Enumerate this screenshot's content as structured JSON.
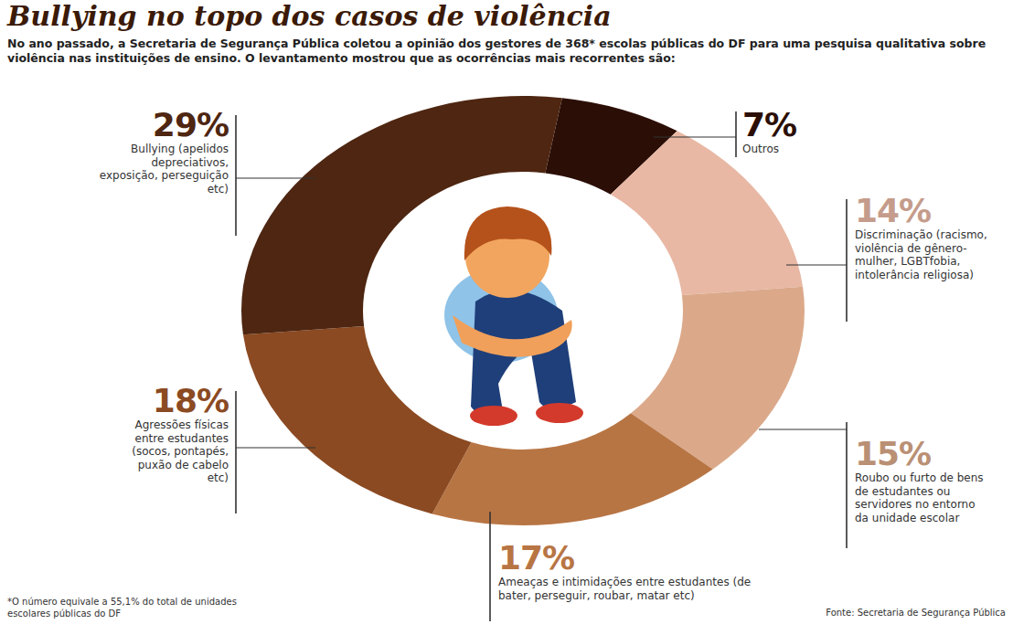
{
  "chart_data": {
    "type": "donut",
    "title": "Bullying no topo dos casos de violência",
    "subtitle": "No ano passado, a Secretaria de Segurança Pública coletou a opinião dos gestores de 368* escolas públicas do DF para uma pesquisa qualitativa sobre violência nas instituições de ensino. O levantamento mostrou que as ocorrências mais recorrentes são:",
    "categories": [
      "Outros",
      "Discriminação (racismo, violência de gênero-mulher, LGBTfobia, intolerância religiosa)",
      "Roubo ou furto de bens de estudantes ou servidores no entorno da unidade escolar",
      "Ameaças e intimidações entre estudantes (de bater, perseguir, roubar, matar etc)",
      "Agressões físicas entre estudantes (socos, pontapés, puxão de cabelo etc)",
      "Bullying (apelidos depreciativos, exposição, perseguição etc)"
    ],
    "values": [
      7,
      14,
      15,
      17,
      18,
      29
    ],
    "value_labels": [
      "7%",
      "14%",
      "15%",
      "17%",
      "18%",
      "29%"
    ],
    "colors": [
      "#2b0f06",
      "#e8b8a4",
      "#dba98a",
      "#b87544",
      "#8b4a22",
      "#4e2611"
    ],
    "data_labels": true,
    "footnote": "*O número equivale a 55,1% do total de unidades escolares públicas do DF",
    "source": "Fonte: Secretaria de Segurança Pública"
  }
}
